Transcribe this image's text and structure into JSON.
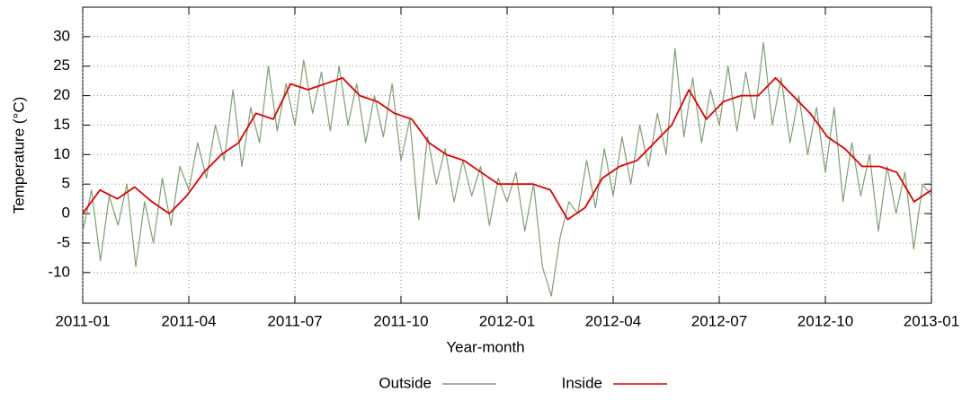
{
  "chart_data": {
    "type": "line",
    "x_label": "Year-month",
    "y_label": "Temperature (°C)",
    "xlim": [
      "2011-01",
      "2013-01"
    ],
    "xticks": [
      "2011-01",
      "2011-04",
      "2011-07",
      "2011-10",
      "2012-01",
      "2012-04",
      "2012-07",
      "2012-10",
      "2013-01"
    ],
    "ylim": [
      -15.2,
      35
    ],
    "yticks": [
      -10,
      -5,
      0,
      5,
      10,
      15,
      20,
      25,
      30
    ],
    "grid": true,
    "legend": "bottom",
    "series": [
      {
        "name": "Outside",
        "color": "#7f9f72",
        "values": [
          -3,
          4,
          -8,
          3,
          -2,
          5,
          -9,
          2,
          -5,
          6,
          -2,
          8,
          4,
          12,
          6,
          15,
          9,
          21,
          8,
          18,
          12,
          25,
          14,
          22,
          15,
          26,
          17,
          24,
          14,
          25,
          15,
          22,
          12,
          20,
          13,
          22,
          9,
          16,
          -1,
          13,
          5,
          11,
          2,
          9,
          3,
          8,
          -2,
          6,
          2,
          7,
          -3,
          5,
          -9,
          -14,
          -4,
          2,
          0,
          9,
          1,
          11,
          3,
          13,
          5,
          15,
          8,
          17,
          10,
          28,
          13,
          23,
          12,
          21,
          15,
          25,
          14,
          24,
          16,
          29,
          15,
          23,
          12,
          20,
          10,
          18,
          7,
          18,
          2,
          12,
          3,
          10,
          -3,
          8,
          0,
          7,
          -6,
          5,
          3
        ]
      },
      {
        "name": "Inside",
        "color": "#e00000",
        "values": [
          0,
          4,
          2.5,
          4.5,
          2,
          0,
          3,
          7,
          10,
          12,
          17,
          16,
          22,
          21,
          22,
          23,
          20,
          19,
          17,
          16,
          12,
          10,
          9,
          7,
          5,
          5,
          5,
          4,
          -1,
          1,
          6,
          8,
          9,
          12,
          15,
          21,
          16,
          19,
          20,
          20,
          23,
          20,
          17,
          13,
          11,
          8,
          8,
          7,
          2,
          4
        ]
      }
    ]
  }
}
